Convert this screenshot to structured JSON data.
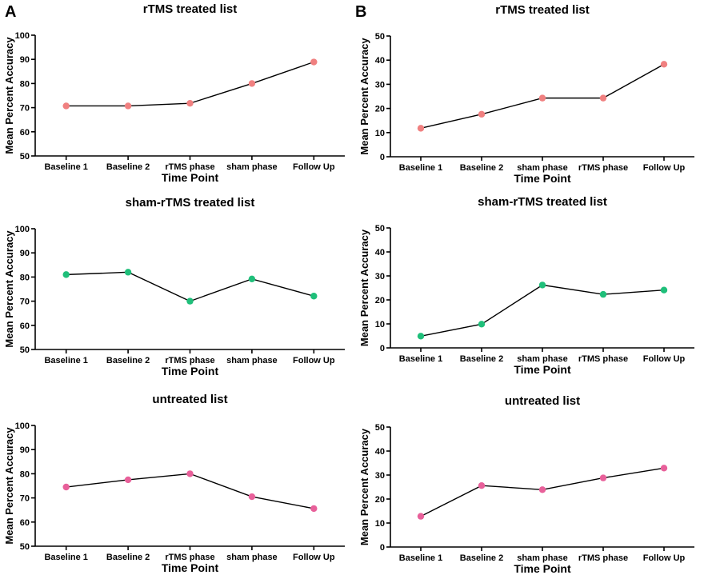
{
  "panel_labels": [
    "A",
    "B"
  ],
  "chart_data": [
    {
      "panel": "A",
      "type": "line",
      "title": "rTMS treated list",
      "xlabel": "Time Point",
      "ylabel": "Mean Percent Accuracy",
      "categories": [
        "Baseline 1",
        "Baseline 2",
        "rTMS phase",
        "sham phase",
        "Follow Up"
      ],
      "values": [
        70.7,
        70.7,
        71.8,
        80.0,
        88.9
      ],
      "ylim": [
        50,
        100
      ],
      "yticks": [
        50,
        60,
        70,
        80,
        90,
        100
      ],
      "marker_color": "#f08080",
      "grid": false
    },
    {
      "panel": "B",
      "type": "line",
      "title": "rTMS treated list",
      "xlabel": "Time Point",
      "ylabel": "Mean Percent Accuracy",
      "categories": [
        "Baseline 1",
        "Baseline 2",
        "sham phase",
        "rTMS phase",
        "Follow Up"
      ],
      "values": [
        11.8,
        17.6,
        24.3,
        24.3,
        38.3
      ],
      "ylim": [
        0,
        50
      ],
      "yticks": [
        0,
        10,
        20,
        30,
        40,
        50
      ],
      "marker_color": "#f08080",
      "grid": false
    },
    {
      "panel": "A",
      "type": "line",
      "title": "sham-rTMS treated list",
      "xlabel": "Time Point",
      "ylabel": "Mean Percent Accuracy",
      "categories": [
        "Baseline 1",
        "Baseline 2",
        "rTMS phase",
        "sham phase",
        "Follow Up"
      ],
      "values": [
        81.0,
        82.0,
        70.0,
        79.2,
        72.1
      ],
      "ylim": [
        50,
        100
      ],
      "yticks": [
        50,
        60,
        70,
        80,
        90,
        100
      ],
      "marker_color": "#1fbf7a",
      "grid": false
    },
    {
      "panel": "B",
      "type": "line",
      "title": "sham-rTMS treated list",
      "xlabel": "Time Point",
      "ylabel": "Mean Percent Accuracy",
      "categories": [
        "Baseline 1",
        "Baseline 2",
        "sham phase",
        "rTMS phase",
        "Follow Up"
      ],
      "values": [
        4.9,
        9.9,
        26.2,
        22.3,
        24.1
      ],
      "ylim": [
        0,
        50
      ],
      "yticks": [
        0,
        10,
        20,
        30,
        40,
        50
      ],
      "marker_color": "#1fbf7a",
      "grid": false
    },
    {
      "panel": "A",
      "type": "line",
      "title": "untreated list",
      "xlabel": "Time Point",
      "ylabel": "Mean Percent Accuracy",
      "categories": [
        "Baseline 1",
        "Baseline 2",
        "rTMS phase",
        "sham phase",
        "Follow Up"
      ],
      "values": [
        74.5,
        77.5,
        80.0,
        70.5,
        65.6
      ],
      "ylim": [
        50,
        100
      ],
      "yticks": [
        50,
        60,
        70,
        80,
        90,
        100
      ],
      "marker_color": "#e8609a",
      "grid": false
    },
    {
      "panel": "B",
      "type": "line",
      "title": "untreated list",
      "xlabel": "Time Point",
      "ylabel": "Mean Percent Accuracy",
      "categories": [
        "Baseline 1",
        "Baseline 2",
        "sham phase",
        "rTMS phase",
        "Follow Up"
      ],
      "values": [
        12.8,
        25.6,
        23.9,
        28.8,
        32.9
      ],
      "ylim": [
        0,
        50
      ],
      "yticks": [
        0,
        10,
        20,
        30,
        40,
        50
      ],
      "marker_color": "#e8609a",
      "grid": false
    }
  ]
}
